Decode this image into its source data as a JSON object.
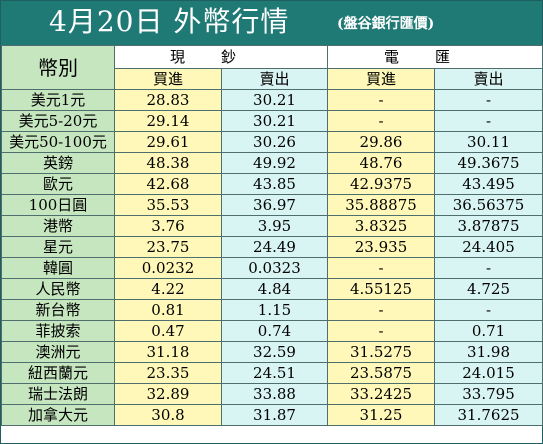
{
  "title": "4月20日 外幣行情",
  "subtitle": "(盤谷銀行匯價)",
  "headers": {
    "currency": "幣別",
    "cash": "現鈔",
    "telegraphic": "電匯",
    "buy": "買進",
    "sell": "賣出"
  },
  "rows": [
    {
      "currency": "美元1元",
      "cash_buy": "28.83",
      "cash_sell": "30.21",
      "tt_buy": "-",
      "tt_sell": "-"
    },
    {
      "currency": "美元5-20元",
      "cash_buy": "29.14",
      "cash_sell": "30.21",
      "tt_buy": "-",
      "tt_sell": "-"
    },
    {
      "currency": "美元50-100元",
      "cash_buy": "29.61",
      "cash_sell": "30.26",
      "tt_buy": "29.86",
      "tt_sell": "30.11"
    },
    {
      "currency": "英鎊",
      "cash_buy": "48.38",
      "cash_sell": "49.92",
      "tt_buy": "48.76",
      "tt_sell": "49.3675"
    },
    {
      "currency": "歐元",
      "cash_buy": "42.68",
      "cash_sell": "43.85",
      "tt_buy": "42.9375",
      "tt_sell": "43.495"
    },
    {
      "currency": "100日圓",
      "cash_buy": "35.53",
      "cash_sell": "36.97",
      "tt_buy": "35.88875",
      "tt_sell": "36.56375"
    },
    {
      "currency": "港幣",
      "cash_buy": "3.76",
      "cash_sell": "3.95",
      "tt_buy": "3.8325",
      "tt_sell": "3.87875"
    },
    {
      "currency": "星元",
      "cash_buy": "23.75",
      "cash_sell": "24.49",
      "tt_buy": "23.935",
      "tt_sell": "24.405"
    },
    {
      "currency": "韓圓",
      "cash_buy": "0.0232",
      "cash_sell": "0.0323",
      "tt_buy": "-",
      "tt_sell": "-"
    },
    {
      "currency": "人民幣",
      "cash_buy": "4.22",
      "cash_sell": "4.84",
      "tt_buy": "4.55125",
      "tt_sell": "4.725"
    },
    {
      "currency": "新台幣",
      "cash_buy": "0.81",
      "cash_sell": "1.15",
      "tt_buy": "-",
      "tt_sell": "-"
    },
    {
      "currency": "菲披索",
      "cash_buy": "0.47",
      "cash_sell": "0.74",
      "tt_buy": "-",
      "tt_sell": "0.71"
    },
    {
      "currency": "澳洲元",
      "cash_buy": "31.18",
      "cash_sell": "32.59",
      "tt_buy": "31.5275",
      "tt_sell": "31.98"
    },
    {
      "currency": "紐西蘭元",
      "cash_buy": "23.35",
      "cash_sell": "24.51",
      "tt_buy": "23.5875",
      "tt_sell": "24.015"
    },
    {
      "currency": "瑞士法朗",
      "cash_buy": "32.89",
      "cash_sell": "33.88",
      "tt_buy": "33.2425",
      "tt_sell": "33.795"
    },
    {
      "currency": "加拿大元",
      "cash_buy": "30.8",
      "cash_sell": "31.87",
      "tt_buy": "31.25",
      "tt_sell": "31.7625"
    }
  ],
  "colors": {
    "title_bg": "#1f7a76",
    "currency_bg": "#c6e6c0",
    "buy_bg": "#fff8b8",
    "sell_bg": "#d9f5f3"
  }
}
